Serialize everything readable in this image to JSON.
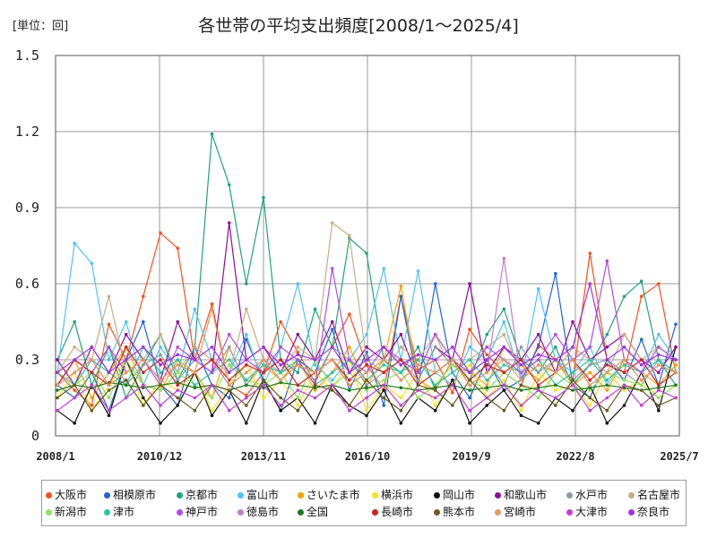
{
  "unit_label": "[単位：回]",
  "chart_data": {
    "type": "line",
    "title": "各世帯の平均支出頻度[2008/1～2025/4]",
    "ylim": [
      0,
      1.5
    ],
    "y_ticks": [
      "0",
      "0.3",
      "0.6",
      "0.9",
      "1.2",
      "1.5"
    ],
    "y_tick_values": [
      0,
      0.3,
      0.6,
      0.9,
      1.2,
      1.5
    ],
    "x_ticks": [
      "2008/1",
      "2010/12",
      "2013/11",
      "2016/10",
      "2019/9",
      "2022/8",
      "2025/7"
    ],
    "x_range": [
      "2008/1",
      "2025/7"
    ],
    "grid": true,
    "legend_position": "bottom",
    "series": [
      {
        "name": "大阪市",
        "color": "#f4511e",
        "values": [
          0.25,
          0.18,
          0.12,
          0.44,
          0.3,
          0.55,
          0.8,
          0.74,
          0.3,
          0.52,
          0.2,
          0.16,
          0.25,
          0.45,
          0.33,
          0.21,
          0.35,
          0.48,
          0.28,
          0.18,
          0.55,
          0.26,
          0.3,
          0.17,
          0.42,
          0.32,
          0.25,
          0.2,
          0.36,
          0.3,
          0.22,
          0.72,
          0.3,
          0.25,
          0.55,
          0.6,
          0.25
        ]
      },
      {
        "name": "相模原市",
        "color": "#1e64d8",
        "values": [
          0.2,
          0.15,
          0.25,
          0.1,
          0.3,
          0.45,
          0.2,
          0.12,
          0.35,
          0.2,
          0.15,
          0.38,
          0.22,
          0.1,
          0.3,
          0.25,
          0.42,
          0.18,
          0.33,
          0.12,
          0.55,
          0.2,
          0.6,
          0.25,
          0.15,
          0.3,
          0.18,
          0.22,
          0.35,
          0.64,
          0.2,
          0.15,
          0.3,
          0.22,
          0.38,
          0.2,
          0.44
        ]
      },
      {
        "name": "京都市",
        "color": "#1fa37a",
        "values": [
          0.3,
          0.45,
          0.2,
          0.35,
          0.15,
          0.28,
          0.4,
          0.22,
          0.35,
          1.19,
          0.99,
          0.6,
          0.94,
          0.3,
          0.25,
          0.5,
          0.35,
          0.78,
          0.72,
          0.3,
          0.25,
          0.35,
          0.18,
          0.3,
          0.22,
          0.4,
          0.5,
          0.3,
          0.25,
          0.35,
          0.2,
          0.28,
          0.4,
          0.55,
          0.61,
          0.3,
          0.2
        ]
      },
      {
        "name": "富山市",
        "color": "#4fc3f7",
        "values": [
          0.25,
          0.76,
          0.68,
          0.3,
          0.45,
          0.2,
          0.35,
          0.25,
          0.5,
          0.3,
          0.25,
          0.4,
          0.2,
          0.35,
          0.6,
          0.28,
          0.22,
          0.3,
          0.4,
          0.66,
          0.3,
          0.65,
          0.25,
          0.2,
          0.35,
          0.3,
          0.45,
          0.22,
          0.58,
          0.3,
          0.25,
          0.35,
          0.2,
          0.3,
          0.25,
          0.4,
          0.3
        ]
      },
      {
        "name": "さいたま市",
        "color": "#ffa000",
        "values": [
          0.2,
          0.3,
          0.15,
          0.25,
          0.35,
          0.2,
          0.18,
          0.3,
          0.25,
          0.15,
          0.35,
          0.2,
          0.28,
          0.22,
          0.3,
          0.18,
          0.25,
          0.35,
          0.2,
          0.3,
          0.59,
          0.22,
          0.18,
          0.3,
          0.25,
          0.2,
          0.35,
          0.28,
          0.22,
          0.3,
          0.2,
          0.25,
          0.18,
          0.3,
          0.25,
          0.2,
          0.28
        ]
      },
      {
        "name": "横浜市",
        "color": "#f9e21c",
        "values": [
          0.15,
          0.25,
          0.1,
          0.2,
          0.3,
          0.12,
          0.22,
          0.18,
          0.25,
          0.1,
          0.2,
          0.28,
          0.15,
          0.22,
          0.12,
          0.25,
          0.18,
          0.3,
          0.1,
          0.2,
          0.15,
          0.25,
          0.12,
          0.2,
          0.28,
          0.15,
          0.22,
          0.1,
          0.25,
          0.18,
          0.2,
          0.12,
          0.25,
          0.18,
          0.22,
          0.15,
          0.2
        ]
      },
      {
        "name": "岡山市",
        "color": "#111111",
        "values": [
          0.1,
          0.05,
          0.2,
          0.08,
          0.3,
          0.15,
          0.05,
          0.12,
          0.25,
          0.08,
          0.18,
          0.05,
          0.22,
          0.1,
          0.15,
          0.05,
          0.2,
          0.12,
          0.08,
          0.18,
          0.05,
          0.15,
          0.1,
          0.22,
          0.05,
          0.12,
          0.18,
          0.08,
          0.05,
          0.15,
          0.1,
          0.2,
          0.05,
          0.12,
          0.25,
          0.1,
          0.35
        ]
      },
      {
        "name": "和歌山市",
        "color": "#8e0c9a",
        "values": [
          0.3,
          0.2,
          0.35,
          0.25,
          0.4,
          0.3,
          0.22,
          0.45,
          0.3,
          0.25,
          0.84,
          0.3,
          0.35,
          0.25,
          0.4,
          0.3,
          0.45,
          0.25,
          0.35,
          0.3,
          0.4,
          0.22,
          0.35,
          0.3,
          0.6,
          0.25,
          0.35,
          0.3,
          0.4,
          0.25,
          0.45,
          0.3,
          0.35,
          0.4,
          0.3,
          0.25,
          0.35
        ]
      },
      {
        "name": "水戸市",
        "color": "#8a9aa8",
        "values": [
          0.2,
          0.3,
          0.25,
          0.35,
          0.2,
          0.28,
          0.32,
          0.22,
          0.3,
          0.25,
          0.35,
          0.2,
          0.3,
          0.25,
          0.28,
          0.22,
          0.35,
          0.3,
          0.2,
          0.25,
          0.3,
          0.22,
          0.35,
          0.28,
          0.25,
          0.3,
          0.2,
          0.35,
          0.25,
          0.3,
          0.22,
          0.28,
          0.3,
          0.25,
          0.2,
          0.3,
          0.25
        ]
      },
      {
        "name": "名古屋市",
        "color": "#c8ad82",
        "values": [
          0.25,
          0.35,
          0.3,
          0.55,
          0.25,
          0.3,
          0.4,
          0.25,
          0.35,
          0.3,
          0.25,
          0.5,
          0.3,
          0.25,
          0.35,
          0.3,
          0.84,
          0.79,
          0.3,
          0.25,
          0.35,
          0.3,
          0.4,
          0.25,
          0.3,
          0.35,
          0.4,
          0.25,
          0.3,
          0.25,
          0.35,
          0.3,
          0.25,
          0.4,
          0.3,
          0.35,
          0.3
        ]
      },
      {
        "name": "新潟市",
        "color": "#8ee35a",
        "values": [
          0.15,
          0.2,
          0.25,
          0.15,
          0.3,
          0.2,
          0.18,
          0.25,
          0.2,
          0.15,
          0.28,
          0.22,
          0.2,
          0.25,
          0.15,
          0.3,
          0.2,
          0.25,
          0.18,
          0.22,
          0.25,
          0.15,
          0.2,
          0.28,
          0.22,
          0.18,
          0.25,
          0.2,
          0.15,
          0.25,
          0.2,
          0.18,
          0.25,
          0.22,
          0.2,
          0.15,
          0.2
        ]
      },
      {
        "name": "津市",
        "color": "#26c6a6",
        "values": [
          0.25,
          0.2,
          0.3,
          0.25,
          0.2,
          0.35,
          0.25,
          0.3,
          0.2,
          0.25,
          0.3,
          0.22,
          0.28,
          0.25,
          0.3,
          0.2,
          0.25,
          0.3,
          0.22,
          0.28,
          0.25,
          0.3,
          0.2,
          0.25,
          0.3,
          0.22,
          0.28,
          0.25,
          0.3,
          0.2,
          0.25,
          0.3,
          0.22,
          0.28,
          0.25,
          0.3,
          0.25
        ]
      },
      {
        "name": "神戸市",
        "color": "#b24de0",
        "values": [
          0.2,
          0.3,
          0.25,
          0.35,
          0.25,
          0.3,
          0.2,
          0.35,
          0.3,
          0.25,
          0.4,
          0.3,
          0.25,
          0.35,
          0.3,
          0.2,
          0.66,
          0.3,
          0.25,
          0.35,
          0.3,
          0.25,
          0.4,
          0.3,
          0.25,
          0.35,
          0.3,
          0.25,
          0.3,
          0.4,
          0.3,
          0.35,
          0.69,
          0.3,
          0.25,
          0.35,
          0.3
        ]
      },
      {
        "name": "徳島市",
        "color": "#c27ec7",
        "values": [
          0.2,
          0.25,
          0.3,
          0.2,
          0.25,
          0.3,
          0.22,
          0.28,
          0.25,
          0.3,
          0.2,
          0.25,
          0.3,
          0.22,
          0.28,
          0.25,
          0.3,
          0.2,
          0.25,
          0.3,
          0.22,
          0.28,
          0.25,
          0.3,
          0.2,
          0.25,
          0.7,
          0.22,
          0.28,
          0.25,
          0.3,
          0.2,
          0.25,
          0.3,
          0.22,
          0.28,
          0.25
        ]
      },
      {
        "name": "全国",
        "color": "#1b7a1b",
        "values": [
          0.18,
          0.2,
          0.19,
          0.21,
          0.2,
          0.19,
          0.2,
          0.21,
          0.19,
          0.2,
          0.18,
          0.2,
          0.19,
          0.21,
          0.2,
          0.19,
          0.2,
          0.18,
          0.19,
          0.2,
          0.19,
          0.18,
          0.19,
          0.2,
          0.18,
          0.19,
          0.2,
          0.18,
          0.19,
          0.2,
          0.18,
          0.19,
          0.2,
          0.19,
          0.18,
          0.19,
          0.2
        ]
      },
      {
        "name": "長崎市",
        "color": "#d32020",
        "values": [
          0.2,
          0.3,
          0.25,
          0.2,
          0.35,
          0.25,
          0.3,
          0.2,
          0.25,
          0.3,
          0.22,
          0.28,
          0.25,
          0.3,
          0.2,
          0.25,
          0.3,
          0.22,
          0.28,
          0.25,
          0.3,
          0.2,
          0.25,
          0.3,
          0.22,
          0.28,
          0.25,
          0.3,
          0.2,
          0.25,
          0.3,
          0.22,
          0.28,
          0.25,
          0.3,
          0.2,
          0.25
        ]
      },
      {
        "name": "熊本市",
        "color": "#6b5a1c",
        "values": [
          0.15,
          0.2,
          0.1,
          0.18,
          0.22,
          0.12,
          0.2,
          0.15,
          0.1,
          0.2,
          0.18,
          0.12,
          0.22,
          0.15,
          0.1,
          0.2,
          0.18,
          0.12,
          0.22,
          0.15,
          0.1,
          0.2,
          0.18,
          0.12,
          0.22,
          0.15,
          0.1,
          0.2,
          0.18,
          0.12,
          0.22,
          0.15,
          0.1,
          0.2,
          0.18,
          0.12,
          0.15
        ]
      },
      {
        "name": "宮崎市",
        "color": "#e39a5c",
        "values": [
          0.2,
          0.25,
          0.3,
          0.2,
          0.25,
          0.3,
          0.22,
          0.28,
          0.25,
          0.5,
          0.2,
          0.25,
          0.3,
          0.22,
          0.28,
          0.25,
          0.3,
          0.2,
          0.25,
          0.3,
          0.22,
          0.28,
          0.25,
          0.3,
          0.2,
          0.25,
          0.3,
          0.22,
          0.28,
          0.25,
          0.3,
          0.2,
          0.25,
          0.3,
          0.22,
          0.28,
          0.25
        ]
      },
      {
        "name": "大津市",
        "color": "#c43ed8",
        "values": [
          0.1,
          0.15,
          0.2,
          0.1,
          0.15,
          0.2,
          0.12,
          0.18,
          0.15,
          0.2,
          0.1,
          0.15,
          0.2,
          0.12,
          0.18,
          0.15,
          0.2,
          0.1,
          0.15,
          0.2,
          0.12,
          0.18,
          0.15,
          0.2,
          0.1,
          0.15,
          0.2,
          0.12,
          0.18,
          0.15,
          0.2,
          0.1,
          0.15,
          0.2,
          0.12,
          0.18,
          0.15
        ]
      },
      {
        "name": "奈良市",
        "color": "#a232e0",
        "values": [
          0.25,
          0.3,
          0.35,
          0.25,
          0.3,
          0.35,
          0.28,
          0.32,
          0.3,
          0.35,
          0.25,
          0.3,
          0.35,
          0.28,
          0.32,
          0.3,
          0.35,
          0.25,
          0.3,
          0.35,
          0.28,
          0.32,
          0.3,
          0.35,
          0.25,
          0.3,
          0.35,
          0.28,
          0.32,
          0.3,
          0.35,
          0.6,
          0.3,
          0.35,
          0.28,
          0.32,
          0.3
        ]
      }
    ]
  }
}
